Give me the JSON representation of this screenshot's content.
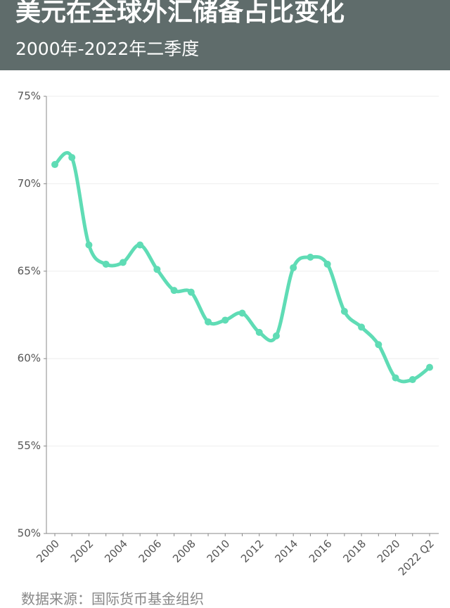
{
  "chart_data": {
    "type": "line",
    "title": "美元在全球外汇储备占比变化",
    "subtitle": "2000年-2022年二季度",
    "source": "数据来源：国际货币基金组织",
    "categories": [
      "2000",
      null,
      "2002",
      null,
      "2004",
      null,
      "2006",
      null,
      "2008",
      null,
      "2010",
      null,
      "2012",
      null,
      "2014",
      null,
      "2016",
      null,
      "2018",
      null,
      "2020",
      null,
      "2022 Q2"
    ],
    "values": [
      71.1,
      71.5,
      66.5,
      65.4,
      65.5,
      66.5,
      65.1,
      63.9,
      63.8,
      62.1,
      62.2,
      62.6,
      61.5,
      61.3,
      65.2,
      65.8,
      65.4,
      62.7,
      61.8,
      60.8,
      58.9,
      58.8,
      59.5
    ],
    "color": "#5fdcb5",
    "ylim": [
      50,
      75
    ],
    "yticks": [
      {
        "value": 50,
        "label": "50%"
      },
      {
        "value": 55,
        "label": "55%"
      },
      {
        "value": 60,
        "label": "60%"
      },
      {
        "value": 65,
        "label": "65%"
      },
      {
        "value": 70,
        "label": "70%"
      },
      {
        "value": 75,
        "label": "75%"
      }
    ],
    "grid": true
  }
}
